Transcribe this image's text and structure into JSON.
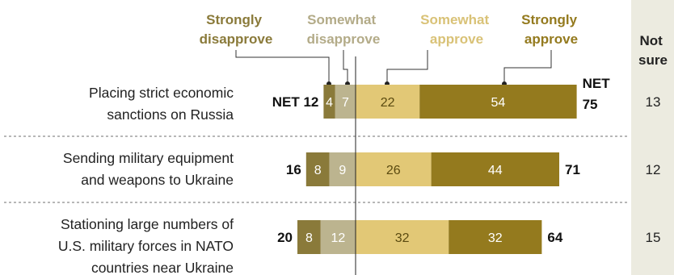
{
  "chart_data": {
    "type": "bar",
    "layout": "diverging-stacked-horizontal",
    "legend": {
      "strongly_disapprove": [
        "Strongly",
        "disapprove"
      ],
      "somewhat_disapprove": [
        "Somewhat",
        "disapprove"
      ],
      "somewhat_approve": [
        "Somewhat",
        "approve"
      ],
      "strongly_approve": [
        "Strongly",
        "approve"
      ],
      "not_sure": [
        "Not",
        "sure"
      ]
    },
    "colors": {
      "strongly_disapprove": "#8a7a3a",
      "somewhat_disapprove": "#bcb48f",
      "somewhat_approve": "#e2c876",
      "strongly_approve": "#947a1e",
      "not_sure_panel": "#ecebe0",
      "text_on_bar": "#ffffff",
      "hdr_strongly_disapprove": "#8a7a3a",
      "hdr_somewhat_disapprove": "#b3ab88",
      "hdr_somewhat_approve": "#d9c277",
      "hdr_strongly_approve": "#947a1e"
    },
    "net_prefix": "NET",
    "categories": [
      [
        "Placing strict economic",
        "sanctions on Russia"
      ],
      [
        "Sending military equipment",
        "and weapons to Ukraine"
      ],
      [
        "Stationing large numbers of",
        "U.S. military forces in NATO",
        "countries near Ukraine"
      ]
    ],
    "series": [
      {
        "name": "Strongly disapprove",
        "values": [
          4,
          8,
          8
        ]
      },
      {
        "name": "Somewhat disapprove",
        "values": [
          7,
          9,
          12
        ]
      },
      {
        "name": "Somewhat approve",
        "values": [
          22,
          26,
          32
        ]
      },
      {
        "name": "Strongly approve",
        "values": [
          54,
          44,
          32
        ]
      }
    ],
    "net_disapprove": [
      12,
      16,
      20
    ],
    "net_approve": [
      75,
      71,
      64
    ],
    "not_sure": [
      13,
      12,
      15
    ]
  }
}
